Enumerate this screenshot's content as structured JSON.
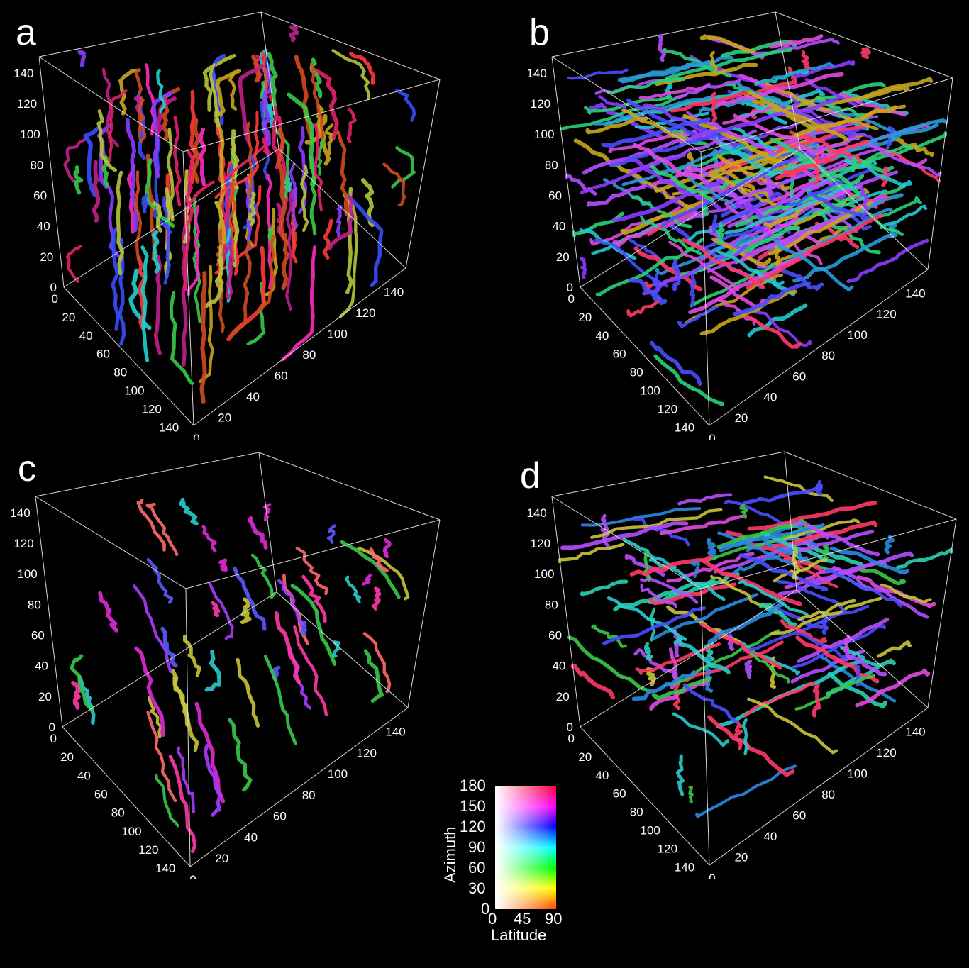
{
  "panels": [
    {
      "label": "a",
      "colors": [
        "#e8206a",
        "#ff2bbd",
        "#c0208a",
        "#8a3cff",
        "#3a4cff",
        "#1fd1d1",
        "#38c84a",
        "#b7c43a",
        "#c8a51c",
        "#d24a1f",
        "#ff3a3a"
      ]
    },
    {
      "label": "b",
      "colors": [
        "#8a3cff",
        "#4a4cff",
        "#2a9ad8",
        "#24c8d0",
        "#b64cff",
        "#e04ae0",
        "#2ad07a",
        "#c8a51c",
        "#ff3a6a"
      ]
    },
    {
      "label": "c",
      "colors": [
        "#e02ad6",
        "#a83cff",
        "#ff3aa8",
        "#2acccc",
        "#38c84a",
        "#c8c43a",
        "#5a5aff",
        "#ff6a6a"
      ]
    },
    {
      "label": "d",
      "colors": [
        "#2ad0b0",
        "#2a8ae0",
        "#4a4cff",
        "#b64cff",
        "#e04ae0",
        "#38c84a",
        "#c8c43a",
        "#ff3a6a",
        "#2acccc"
      ]
    }
  ],
  "axes": {
    "vertical_ticks": [
      "0",
      "20",
      "40",
      "60",
      "80",
      "100",
      "120",
      "140"
    ],
    "left_depth_ticks": [
      "0",
      "20",
      "40",
      "60",
      "80",
      "100",
      "120",
      "140"
    ],
    "right_ticks": [
      "0",
      "20",
      "40",
      "60",
      "80",
      "100",
      "120",
      "140"
    ]
  },
  "legend": {
    "azimuth_title": "Azimuth",
    "latitude_title": "Latitude",
    "azimuth_ticks": [
      "180",
      "150",
      "120",
      "90",
      "60",
      "30",
      "0"
    ],
    "latitude_ticks": [
      "0",
      "45",
      "90"
    ]
  }
}
